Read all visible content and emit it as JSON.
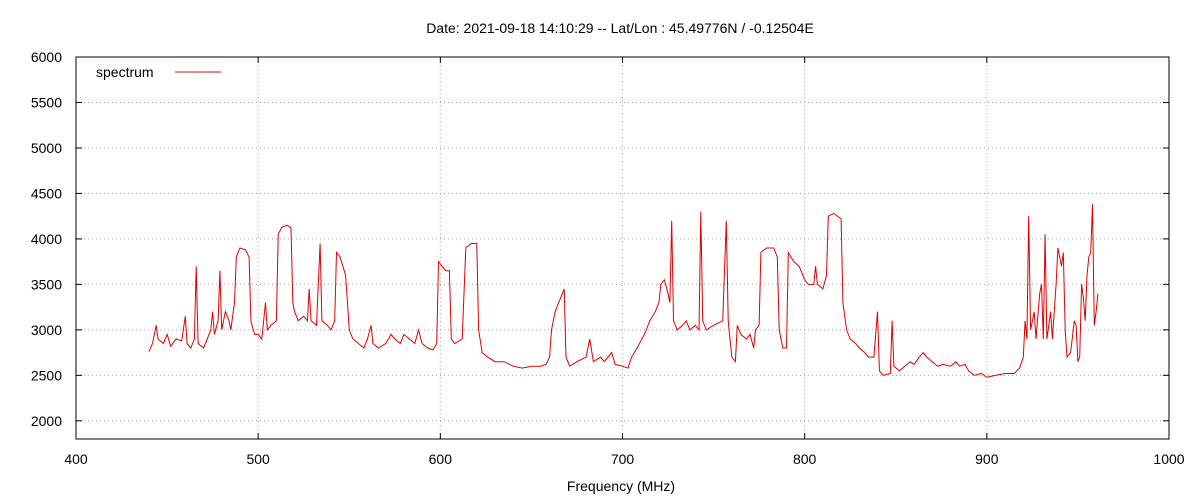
{
  "chart_data": {
    "type": "line",
    "title": "Date: 2021-09-18 14:10:29  --  Lat/Lon : 45.49776N / -0.12504E",
    "xlabel": "Frequency (MHz)",
    "ylabel": "",
    "xlim": [
      400,
      1000
    ],
    "ylim": [
      1800,
      6000
    ],
    "xticks": [
      400,
      500,
      600,
      700,
      800,
      900,
      1000
    ],
    "yticks": [
      2000,
      2500,
      3000,
      3500,
      4000,
      4500,
      5000,
      5500,
      6000
    ],
    "grid": true,
    "legend_position": "top-left",
    "series": [
      {
        "name": "spectrum",
        "color": "#e00000",
        "points": [
          [
            440,
            2760
          ],
          [
            442,
            2850
          ],
          [
            444,
            3050
          ],
          [
            445,
            2900
          ],
          [
            448,
            2850
          ],
          [
            450,
            2950
          ],
          [
            452,
            2820
          ],
          [
            455,
            2900
          ],
          [
            458,
            2880
          ],
          [
            460,
            3150
          ],
          [
            461,
            2850
          ],
          [
            463,
            2800
          ],
          [
            465,
            2900
          ],
          [
            466,
            3700
          ],
          [
            467,
            2850
          ],
          [
            470,
            2800
          ],
          [
            472,
            2900
          ],
          [
            474,
            3000
          ],
          [
            475,
            3200
          ],
          [
            476,
            2950
          ],
          [
            478,
            3100
          ],
          [
            479,
            3650
          ],
          [
            480,
            3000
          ],
          [
            482,
            3200
          ],
          [
            484,
            3100
          ],
          [
            485,
            3000
          ],
          [
            487,
            3300
          ],
          [
            488,
            3800
          ],
          [
            490,
            3900
          ],
          [
            493,
            3880
          ],
          [
            495,
            3800
          ],
          [
            496,
            3100
          ],
          [
            498,
            2950
          ],
          [
            500,
            2950
          ],
          [
            502,
            2900
          ],
          [
            504,
            3300
          ],
          [
            505,
            3000
          ],
          [
            507,
            3050
          ],
          [
            510,
            3100
          ],
          [
            511,
            4050
          ],
          [
            513,
            4130
          ],
          [
            516,
            4150
          ],
          [
            518,
            4120
          ],
          [
            519,
            3300
          ],
          [
            520,
            3200
          ],
          [
            522,
            3100
          ],
          [
            525,
            3150
          ],
          [
            527,
            3100
          ],
          [
            528,
            3450
          ],
          [
            529,
            3100
          ],
          [
            532,
            3050
          ],
          [
            534,
            3950
          ],
          [
            535,
            3100
          ],
          [
            538,
            3050
          ],
          [
            540,
            3000
          ],
          [
            542,
            3100
          ],
          [
            543,
            3850
          ],
          [
            545,
            3800
          ],
          [
            548,
            3600
          ],
          [
            550,
            3000
          ],
          [
            552,
            2900
          ],
          [
            555,
            2850
          ],
          [
            558,
            2800
          ],
          [
            560,
            2900
          ],
          [
            562,
            3050
          ],
          [
            563,
            2850
          ],
          [
            566,
            2800
          ],
          [
            570,
            2850
          ],
          [
            573,
            2950
          ],
          [
            575,
            2900
          ],
          [
            578,
            2850
          ],
          [
            580,
            2950
          ],
          [
            583,
            2900
          ],
          [
            586,
            2850
          ],
          [
            588,
            3000
          ],
          [
            590,
            2850
          ],
          [
            593,
            2800
          ],
          [
            596,
            2780
          ],
          [
            598,
            2850
          ],
          [
            599,
            3750
          ],
          [
            601,
            3700
          ],
          [
            603,
            3650
          ],
          [
            605,
            3650
          ],
          [
            606,
            2900
          ],
          [
            608,
            2850
          ],
          [
            612,
            2900
          ],
          [
            614,
            3900
          ],
          [
            617,
            3950
          ],
          [
            620,
            3950
          ],
          [
            621,
            3000
          ],
          [
            623,
            2750
          ],
          [
            626,
            2700
          ],
          [
            630,
            2650
          ],
          [
            635,
            2650
          ],
          [
            640,
            2600
          ],
          [
            645,
            2580
          ],
          [
            650,
            2600
          ],
          [
            655,
            2600
          ],
          [
            658,
            2620
          ],
          [
            660,
            2700
          ],
          [
            661,
            3000
          ],
          [
            663,
            3200
          ],
          [
            665,
            3300
          ],
          [
            667,
            3400
          ],
          [
            668,
            3450
          ],
          [
            669,
            2700
          ],
          [
            671,
            2600
          ],
          [
            675,
            2650
          ],
          [
            680,
            2700
          ],
          [
            682,
            2900
          ],
          [
            684,
            2650
          ],
          [
            688,
            2700
          ],
          [
            690,
            2650
          ],
          [
            694,
            2750
          ],
          [
            696,
            2620
          ],
          [
            700,
            2600
          ],
          [
            703,
            2580
          ],
          [
            705,
            2700
          ],
          [
            708,
            2800
          ],
          [
            712,
            2950
          ],
          [
            715,
            3100
          ],
          [
            718,
            3200
          ],
          [
            720,
            3300
          ],
          [
            721,
            3500
          ],
          [
            723,
            3550
          ],
          [
            725,
            3400
          ],
          [
            726,
            3300
          ],
          [
            727,
            4200
          ],
          [
            728,
            3100
          ],
          [
            730,
            3000
          ],
          [
            733,
            3050
          ],
          [
            735,
            3100
          ],
          [
            737,
            3000
          ],
          [
            740,
            3050
          ],
          [
            742,
            3000
          ],
          [
            743,
            4300
          ],
          [
            744,
            3100
          ],
          [
            746,
            3000
          ],
          [
            750,
            3050
          ],
          [
            755,
            3100
          ],
          [
            757,
            4200
          ],
          [
            758,
            3100
          ],
          [
            760,
            2700
          ],
          [
            762,
            2650
          ],
          [
            763,
            3050
          ],
          [
            765,
            2950
          ],
          [
            768,
            2900
          ],
          [
            770,
            2950
          ],
          [
            772,
            2800
          ],
          [
            773,
            3000
          ],
          [
            775,
            3050
          ],
          [
            776,
            3850
          ],
          [
            779,
            3900
          ],
          [
            783,
            3900
          ],
          [
            785,
            3800
          ],
          [
            786,
            3000
          ],
          [
            788,
            2800
          ],
          [
            790,
            2800
          ],
          [
            791,
            3850
          ],
          [
            794,
            3750
          ],
          [
            797,
            3700
          ],
          [
            799,
            3600
          ],
          [
            800,
            3550
          ],
          [
            802,
            3500
          ],
          [
            805,
            3500
          ],
          [
            806,
            3700
          ],
          [
            807,
            3500
          ],
          [
            810,
            3450
          ],
          [
            812,
            3600
          ],
          [
            813,
            4250
          ],
          [
            816,
            4280
          ],
          [
            820,
            4220
          ],
          [
            821,
            3300
          ],
          [
            823,
            3000
          ],
          [
            825,
            2900
          ],
          [
            828,
            2850
          ],
          [
            830,
            2800
          ],
          [
            833,
            2750
          ],
          [
            835,
            2700
          ],
          [
            838,
            2700
          ],
          [
            840,
            3200
          ],
          [
            841,
            2550
          ],
          [
            843,
            2500
          ],
          [
            847,
            2520
          ],
          [
            848,
            3100
          ],
          [
            849,
            2600
          ],
          [
            852,
            2550
          ],
          [
            855,
            2600
          ],
          [
            858,
            2650
          ],
          [
            860,
            2620
          ],
          [
            863,
            2700
          ],
          [
            865,
            2750
          ],
          [
            867,
            2700
          ],
          [
            870,
            2650
          ],
          [
            873,
            2600
          ],
          [
            876,
            2620
          ],
          [
            880,
            2600
          ],
          [
            883,
            2650
          ],
          [
            885,
            2600
          ],
          [
            888,
            2620
          ],
          [
            890,
            2550
          ],
          [
            893,
            2500
          ],
          [
            897,
            2520
          ],
          [
            900,
            2480
          ],
          [
            905,
            2500
          ],
          [
            910,
            2520
          ],
          [
            915,
            2520
          ],
          [
            918,
            2580
          ],
          [
            920,
            2700
          ],
          [
            921,
            3100
          ],
          [
            922,
            2900
          ],
          [
            923,
            4250
          ],
          [
            924,
            3000
          ],
          [
            926,
            3200
          ],
          [
            927,
            2900
          ],
          [
            929,
            3400
          ],
          [
            930,
            3500
          ],
          [
            931,
            2900
          ],
          [
            932,
            4050
          ],
          [
            933,
            2900
          ],
          [
            935,
            3200
          ],
          [
            936,
            2900
          ],
          [
            938,
            3500
          ],
          [
            939,
            3900
          ],
          [
            940,
            3800
          ],
          [
            941,
            3700
          ],
          [
            942,
            3850
          ],
          [
            943,
            3000
          ],
          [
            944,
            2700
          ],
          [
            946,
            2750
          ],
          [
            948,
            3100
          ],
          [
            949,
            3050
          ],
          [
            950,
            2650
          ],
          [
            951,
            2700
          ],
          [
            952,
            3500
          ],
          [
            953,
            3350
          ],
          [
            954,
            3100
          ],
          [
            955,
            3600
          ],
          [
            956,
            3800
          ],
          [
            957,
            3850
          ],
          [
            958,
            4380
          ],
          [
            959,
            3050
          ],
          [
            960,
            3200
          ],
          [
            961,
            3400
          ]
        ]
      }
    ]
  }
}
